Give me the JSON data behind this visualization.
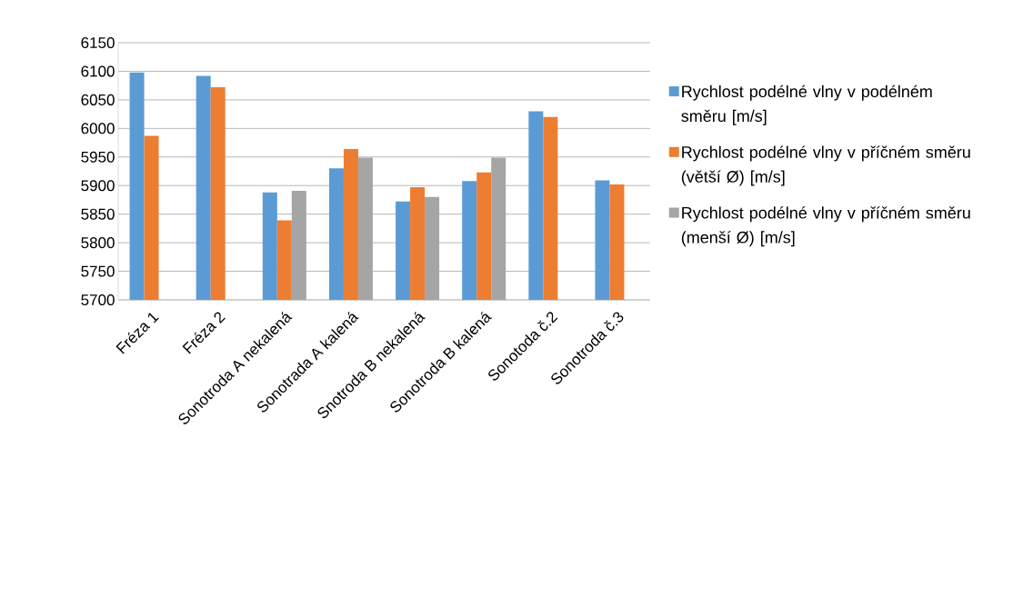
{
  "chart_data": {
    "type": "bar",
    "categories": [
      "Fréza 1",
      "Fréza 2",
      "Sonotroda A nekalená",
      "Sonotrada A kalená",
      "Snotroda B nekalená",
      "Sonotroda B kalená",
      "Sonotoda č.2",
      "Sonotroda č.3"
    ],
    "series": [
      {
        "name": "Rychlost podélné vlny v podélném směru [m/s]",
        "color": "#5b9bd5",
        "values": [
          6098,
          6092,
          5888,
          5930,
          5872,
          5908,
          6030,
          5909
        ]
      },
      {
        "name": "Rychlost podélné vlny v příčném směru (větší Ø) [m/s]",
        "color": "#ed7d31",
        "values": [
          5987,
          6072,
          5839,
          5964,
          5897,
          5923,
          6020,
          5902
        ]
      },
      {
        "name": "Rychlost podélné vlny v příčném směru (menší Ø) [m/s]",
        "color": "#a5a5a5",
        "values": [
          null,
          null,
          5891,
          5949,
          5880,
          5949,
          null,
          null
        ]
      }
    ],
    "ylim": [
      5700,
      6150
    ],
    "yticks": [
      5700,
      5750,
      5800,
      5850,
      5900,
      5950,
      6000,
      6050,
      6100,
      6150
    ],
    "grid": "y",
    "legend": "right"
  }
}
